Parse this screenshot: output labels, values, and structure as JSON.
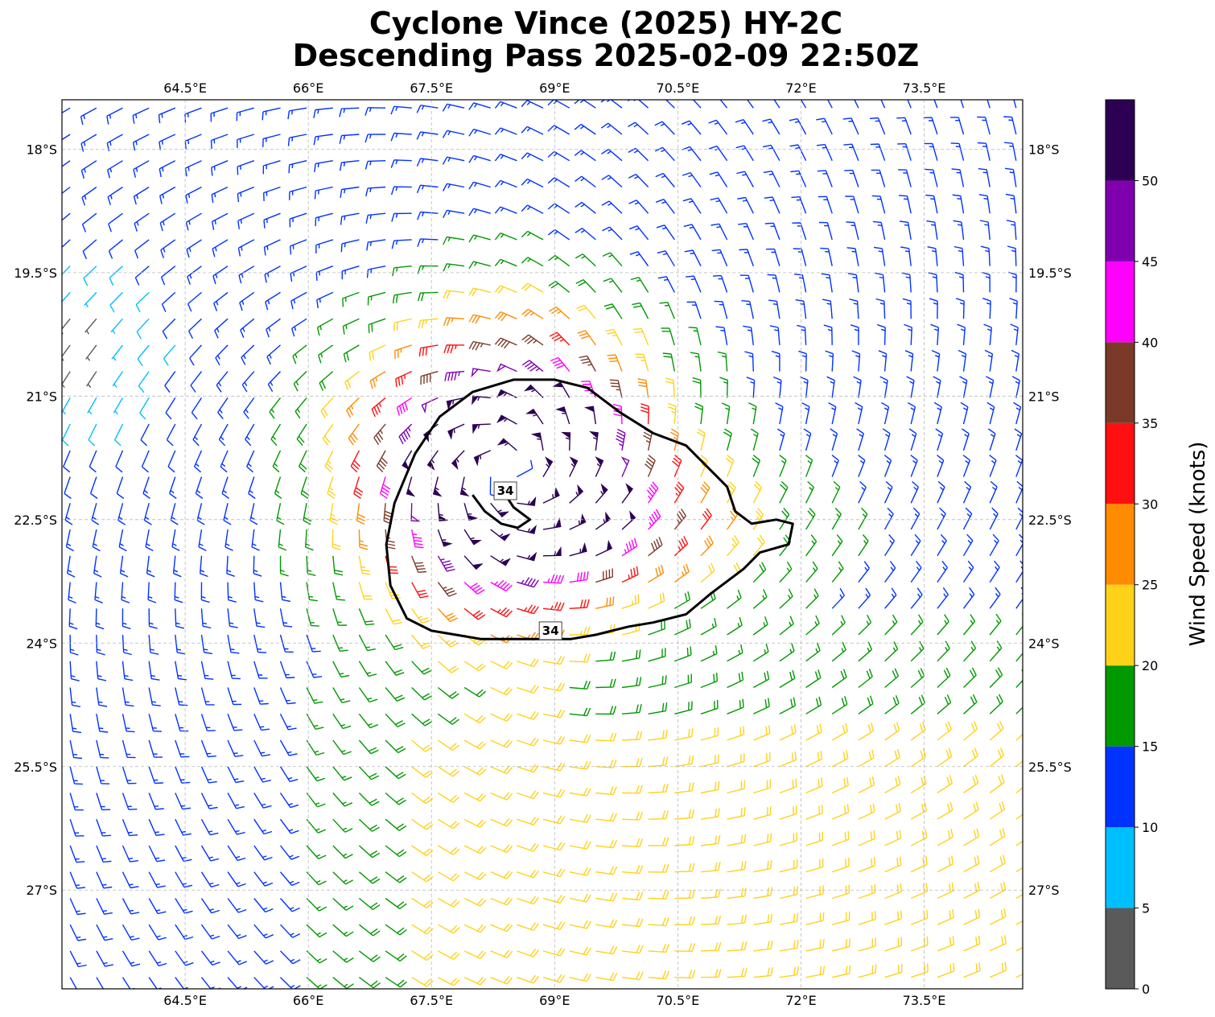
{
  "title": {
    "line1": "Cyclone Vince (2025) HY-2C",
    "line2": "Descending Pass 2025-02-09 22:50Z"
  },
  "map": {
    "lon_range": [
      63.0,
      74.7
    ],
    "lat_range": [
      -28.2,
      -17.4
    ],
    "lon_ticks": [
      64.5,
      66,
      67.5,
      69,
      70.5,
      72,
      73.5
    ],
    "lon_tick_labels": [
      "64.5°E",
      "66°E",
      "67.5°E",
      "69°E",
      "70.5°E",
      "72°E",
      "73.5°E"
    ],
    "lat_ticks": [
      -18,
      -19.5,
      -21,
      -22.5,
      -24,
      -25.5,
      -27
    ],
    "lat_tick_labels": [
      "18°S",
      "19.5°S",
      "21°S",
      "22.5°S",
      "24°S",
      "25.5°S",
      "27°S"
    ],
    "gridlines": true,
    "cyclone_center": {
      "lon": 68.45,
      "lat": -21.9
    },
    "contour": {
      "level_label": "34",
      "color": "#000000",
      "outline_points": [
        [
          67.2,
          -23.7
        ],
        [
          67.0,
          -23.3
        ],
        [
          66.95,
          -22.8
        ],
        [
          67.05,
          -22.3
        ],
        [
          67.3,
          -21.7
        ],
        [
          67.6,
          -21.25
        ],
        [
          68.0,
          -20.95
        ],
        [
          68.5,
          -20.8
        ],
        [
          69.0,
          -20.8
        ],
        [
          69.4,
          -20.9
        ],
        [
          69.8,
          -21.2
        ],
        [
          70.2,
          -21.45
        ],
        [
          70.6,
          -21.6
        ],
        [
          70.9,
          -21.9
        ],
        [
          71.1,
          -22.1
        ],
        [
          71.2,
          -22.4
        ],
        [
          71.4,
          -22.55
        ],
        [
          71.7,
          -22.5
        ],
        [
          71.9,
          -22.55
        ],
        [
          71.85,
          -22.8
        ],
        [
          71.5,
          -22.9
        ],
        [
          71.3,
          -23.1
        ],
        [
          70.9,
          -23.4
        ],
        [
          70.6,
          -23.65
        ],
        [
          70.2,
          -23.75
        ],
        [
          69.9,
          -23.8
        ],
        [
          69.5,
          -23.9
        ],
        [
          69.2,
          -23.95
        ],
        [
          68.8,
          -23.95
        ],
        [
          68.5,
          -23.95
        ],
        [
          68.1,
          -23.95
        ],
        [
          67.8,
          -23.9
        ],
        [
          67.5,
          -23.85
        ],
        [
          67.2,
          -23.7
        ]
      ],
      "inner_points": [
        [
          68.0,
          -22.2
        ],
        [
          68.15,
          -22.4
        ],
        [
          68.35,
          -22.55
        ],
        [
          68.55,
          -22.6
        ],
        [
          68.7,
          -22.5
        ],
        [
          68.5,
          -22.35
        ],
        [
          68.4,
          -22.2
        ]
      ],
      "label_positions": [
        [
          68.4,
          -22.15
        ],
        [
          68.95,
          -23.85
        ]
      ]
    },
    "barbs": {
      "spacing_deg": 0.32,
      "scatter_pattern": "systematic-curved",
      "note_units": "knots"
    }
  },
  "colorbar": {
    "label": "Wind Speed (knots)",
    "boundaries": [
      0,
      5,
      10,
      15,
      20,
      25,
      30,
      35,
      40,
      45,
      50,
      55
    ],
    "tick_values": [
      0,
      5,
      10,
      15,
      20,
      25,
      30,
      35,
      40,
      45,
      50
    ],
    "tick_labels": [
      "0",
      "5",
      "10",
      "15",
      "20",
      "25",
      "30",
      "35",
      "40",
      "45",
      "50"
    ],
    "colors": [
      "#5a5a5a",
      "#00bfff",
      "#0033ff",
      "#009900",
      "#ffd21a",
      "#ff8c00",
      "#ff1010",
      "#7b3a28",
      "#ff00ff",
      "#8000b0",
      "#2d0054"
    ]
  }
}
